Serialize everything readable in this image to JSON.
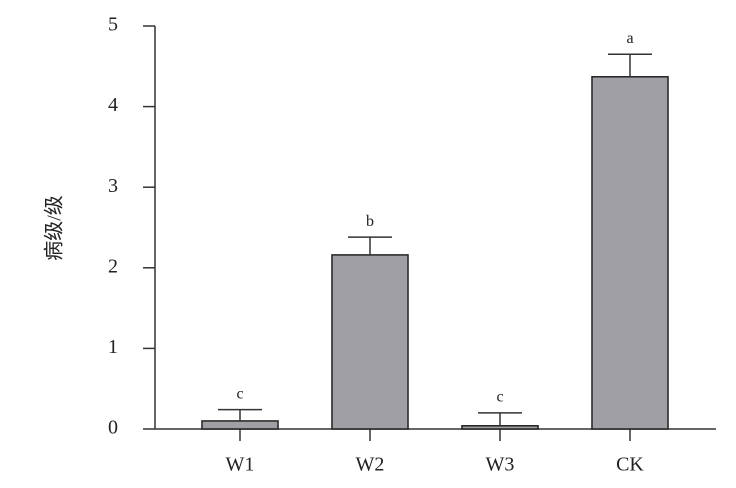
{
  "chart_data": {
    "type": "bar",
    "y_label": "病级/级",
    "categories": [
      "W1",
      "W2",
      "W3",
      "CK"
    ],
    "values": [
      0.1,
      2.16,
      0.04,
      4.37
    ],
    "errors": [
      0.14,
      0.22,
      0.16,
      0.28
    ],
    "significance": [
      "c",
      "b",
      "c",
      "a"
    ],
    "color": "#a0a0a4",
    "ylim": [
      0,
      5
    ],
    "yticks": [
      0,
      1,
      2,
      3,
      4,
      5
    ]
  }
}
